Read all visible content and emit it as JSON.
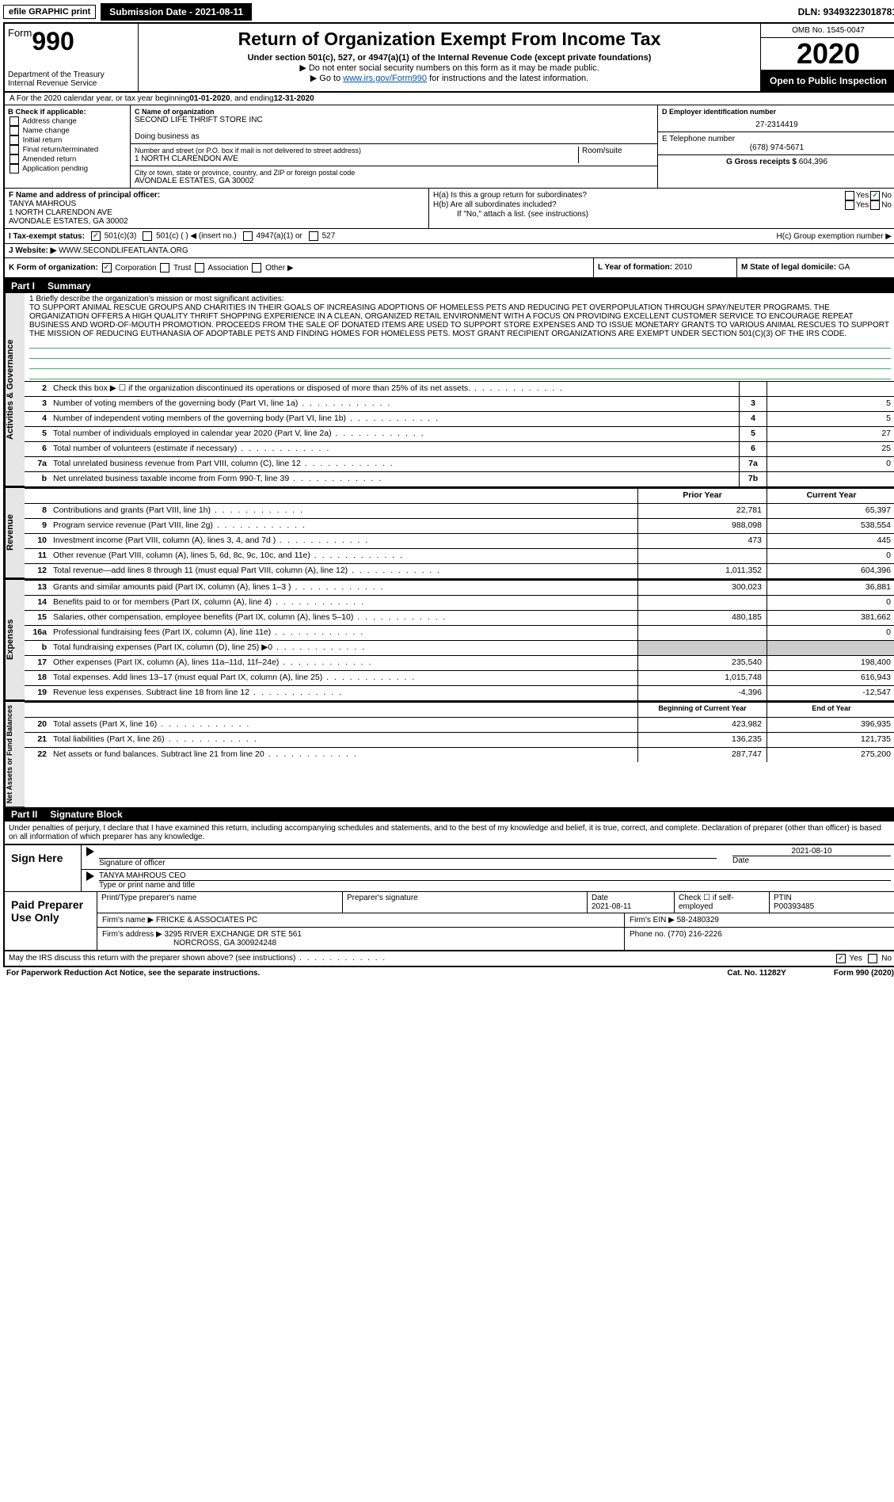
{
  "topbar": {
    "efile": "efile GRAPHIC print",
    "submission_label": "Submission Date - 2021-08-11",
    "dln": "DLN: 93493223018781"
  },
  "header": {
    "form_word": "Form",
    "form_num": "990",
    "dept": "Department of the Treasury\nInternal Revenue Service",
    "title": "Return of Organization Exempt From Income Tax",
    "sub1": "Under section 501(c), 527, or 4947(a)(1) of the Internal Revenue Code (except private foundations)",
    "sub2": "▶ Do not enter social security numbers on this form as it may be made public.",
    "sub3_pre": "▶ Go to ",
    "sub3_link": "www.irs.gov/Form990",
    "sub3_post": " for instructions and the latest information.",
    "omb": "OMB No. 1545-0047",
    "year": "2020",
    "open": "Open to Public Inspection"
  },
  "rowA": {
    "pre": "A For the 2020 calendar year, or tax year beginning ",
    "begin": "01-01-2020",
    "mid": " , and ending ",
    "end": "12-31-2020"
  },
  "colB": {
    "title": "B Check if applicable:",
    "opts": [
      "Address change",
      "Name change",
      "Initial return",
      "Final return/terminated",
      "Amended return",
      "Application pending"
    ]
  },
  "colC": {
    "name_label": "C Name of organization",
    "name": "SECOND LIFE THRIFT STORE INC",
    "dba_label": "Doing business as",
    "dba": "",
    "addr_label": "Number and street (or P.O. box if mail is not delivered to street address)",
    "room_label": "Room/suite",
    "addr": "1 NORTH CLARENDON AVE",
    "city_label": "City or town, state or province, country, and ZIP or foreign postal code",
    "city": "AVONDALE ESTATES, GA  30002"
  },
  "colDE": {
    "d_label": "D Employer identification number",
    "d_val": "27-2314419",
    "e_label": "E Telephone number",
    "e_val": "(678) 974-5671",
    "g_label": "G Gross receipts $",
    "g_val": "604,396"
  },
  "rowF": {
    "f_label": "F  Name and address of principal officer:",
    "f_name": "TANYA MAHROUS",
    "f_addr1": "1 NORTH CLARENDON AVE",
    "f_addr2": "AVONDALE ESTATES, GA  30002",
    "ha": "H(a)  Is this a group return for subordinates?",
    "hb": "H(b)  Are all subordinates included?",
    "hb_note": "If \"No,\" attach a list. (see instructions)",
    "hc": "H(c)  Group exemption number ▶"
  },
  "rowI": {
    "label": "I   Tax-exempt status:",
    "opts": [
      "501(c)(3)",
      "501(c) (  ) ◀ (insert no.)",
      "4947(a)(1) or",
      "527"
    ]
  },
  "rowJ": {
    "label": "J   Website: ▶",
    "val": "WWW.SECONDLIFEATLANTA.ORG"
  },
  "rowK": {
    "label": "K Form of organization:",
    "opts": [
      "Corporation",
      "Trust",
      "Association",
      "Other ▶"
    ],
    "l_label": "L Year of formation:",
    "l_val": "2010",
    "m_label": "M State of legal domicile:",
    "m_val": "GA"
  },
  "partI": {
    "num": "Part I",
    "title": "Summary"
  },
  "mission": {
    "label": "1   Briefly describe the organization's mission or most significant activities:",
    "text": "TO SUPPORT ANIMAL RESCUE GROUPS AND CHARITIES IN THEIR GOALS OF INCREASING ADOPTIONS OF HOMELESS PETS AND REDUCING PET OVERPOPULATION THROUGH SPAY/NEUTER PROGRAMS. THE ORGANIZATION OFFERS A HIGH QUALITY THRIFT SHOPPING EXPERIENCE IN A CLEAN, ORGANIZED RETAIL ENVIRONMENT WITH A FOCUS ON PROVIDING EXCELLENT CUSTOMER SERVICE TO ENCOURAGE REPEAT BUSINESS AND WORD-OF-MOUTH PROMOTION. PROCEEDS FROM THE SALE OF DONATED ITEMS ARE USED TO SUPPORT STORE EXPENSES AND TO ISSUE MONETARY GRANTS TO VARIOUS ANIMAL RESCUES TO SUPPORT THE MISSION OF REDUCING EUTHANASIA OF ADOPTABLE PETS AND FINDING HOMES FOR HOMELESS PETS. MOST GRANT RECIPIENT ORGANIZATIONS ARE EXEMPT UNDER SECTION 501(C)(3) OF THE IRS CODE."
  },
  "gov_lines": [
    {
      "n": "2",
      "d": "Check this box ▶ ☐ if the organization discontinued its operations or disposed of more than 25% of its net assets.",
      "box": "",
      "v": ""
    },
    {
      "n": "3",
      "d": "Number of voting members of the governing body (Part VI, line 1a)",
      "box": "3",
      "v": "5"
    },
    {
      "n": "4",
      "d": "Number of independent voting members of the governing body (Part VI, line 1b)",
      "box": "4",
      "v": "5"
    },
    {
      "n": "5",
      "d": "Total number of individuals employed in calendar year 2020 (Part V, line 2a)",
      "box": "5",
      "v": "27"
    },
    {
      "n": "6",
      "d": "Total number of volunteers (estimate if necessary)",
      "box": "6",
      "v": "25"
    },
    {
      "n": "7a",
      "d": "Total unrelated business revenue from Part VIII, column (C), line 12",
      "box": "7a",
      "v": "0"
    },
    {
      "n": "b",
      "d": "Net unrelated business taxable income from Form 990-T, line 39",
      "box": "7b",
      "v": ""
    }
  ],
  "col_headers": {
    "prior": "Prior Year",
    "current": "Current Year"
  },
  "rev_lines": [
    {
      "n": "8",
      "d": "Contributions and grants (Part VIII, line 1h)",
      "p": "22,781",
      "c": "65,397"
    },
    {
      "n": "9",
      "d": "Program service revenue (Part VIII, line 2g)",
      "p": "988,098",
      "c": "538,554"
    },
    {
      "n": "10",
      "d": "Investment income (Part VIII, column (A), lines 3, 4, and 7d )",
      "p": "473",
      "c": "445"
    },
    {
      "n": "11",
      "d": "Other revenue (Part VIII, column (A), lines 5, 6d, 8c, 9c, 10c, and 11e)",
      "p": "",
      "c": "0"
    },
    {
      "n": "12",
      "d": "Total revenue—add lines 8 through 11 (must equal Part VIII, column (A), line 12)",
      "p": "1,011,352",
      "c": "604,396"
    }
  ],
  "exp_lines": [
    {
      "n": "13",
      "d": "Grants and similar amounts paid (Part IX, column (A), lines 1–3 )",
      "p": "300,023",
      "c": "36,881"
    },
    {
      "n": "14",
      "d": "Benefits paid to or for members (Part IX, column (A), line 4)",
      "p": "",
      "c": "0"
    },
    {
      "n": "15",
      "d": "Salaries, other compensation, employee benefits (Part IX, column (A), lines 5–10)",
      "p": "480,185",
      "c": "381,662"
    },
    {
      "n": "16a",
      "d": "Professional fundraising fees (Part IX, column (A), line 11e)",
      "p": "",
      "c": "0"
    },
    {
      "n": "b",
      "d": "Total fundraising expenses (Part IX, column (D), line 25) ▶0",
      "p": "GRAY",
      "c": "GRAY"
    },
    {
      "n": "17",
      "d": "Other expenses (Part IX, column (A), lines 11a–11d, 11f–24e)",
      "p": "235,540",
      "c": "198,400"
    },
    {
      "n": "18",
      "d": "Total expenses. Add lines 13–17 (must equal Part IX, column (A), line 25)",
      "p": "1,015,748",
      "c": "616,943"
    },
    {
      "n": "19",
      "d": "Revenue less expenses. Subtract line 18 from line 12",
      "p": "-4,396",
      "c": "-12,547"
    }
  ],
  "net_headers": {
    "begin": "Beginning of Current Year",
    "end": "End of Year"
  },
  "net_lines": [
    {
      "n": "20",
      "d": "Total assets (Part X, line 16)",
      "p": "423,982",
      "c": "396,935"
    },
    {
      "n": "21",
      "d": "Total liabilities (Part X, line 26)",
      "p": "136,235",
      "c": "121,735"
    },
    {
      "n": "22",
      "d": "Net assets or fund balances. Subtract line 21 from line 20",
      "p": "287,747",
      "c": "275,200"
    }
  ],
  "vtabs": {
    "gov": "Activities & Governance",
    "rev": "Revenue",
    "exp": "Expenses",
    "net": "Net Assets or Fund Balances"
  },
  "partII": {
    "num": "Part II",
    "title": "Signature Block"
  },
  "sig": {
    "decl": "Under penalties of perjury, I declare that I have examined this return, including accompanying schedules and statements, and to the best of my knowledge and belief, it is true, correct, and complete. Declaration of preparer (other than officer) is based on all information of which preparer has any knowledge.",
    "sign_here": "Sign Here",
    "sig_officer": "Signature of officer",
    "date_label": "Date",
    "date_val": "2021-08-10",
    "name_title": "TANYA MAHROUS CEO",
    "name_label": "Type or print name and title",
    "paid": "Paid Preparer Use Only",
    "prep_name_label": "Print/Type preparer's name",
    "prep_sig_label": "Preparer's signature",
    "prep_date_label": "Date",
    "prep_date": "2021-08-11",
    "self_emp": "Check ☐ if self-employed",
    "ptin_label": "PTIN",
    "ptin": "P00393485",
    "firm_name_label": "Firm's name   ▶",
    "firm_name": "FRICKE & ASSOCIATES PC",
    "firm_ein_label": "Firm's EIN ▶",
    "firm_ein": "58-2480329",
    "firm_addr_label": "Firm's address ▶",
    "firm_addr1": "3295 RIVER EXCHANGE DR STE 561",
    "firm_addr2": "NORCROSS, GA  300924248",
    "phone_label": "Phone no.",
    "phone": "(770) 216-2226",
    "discuss": "May the IRS discuss this return with the preparer shown above? (see instructions)",
    "paperwork": "For Paperwork Reduction Act Notice, see the separate instructions.",
    "catno": "Cat. No. 11282Y",
    "formno": "Form 990 (2020)"
  }
}
